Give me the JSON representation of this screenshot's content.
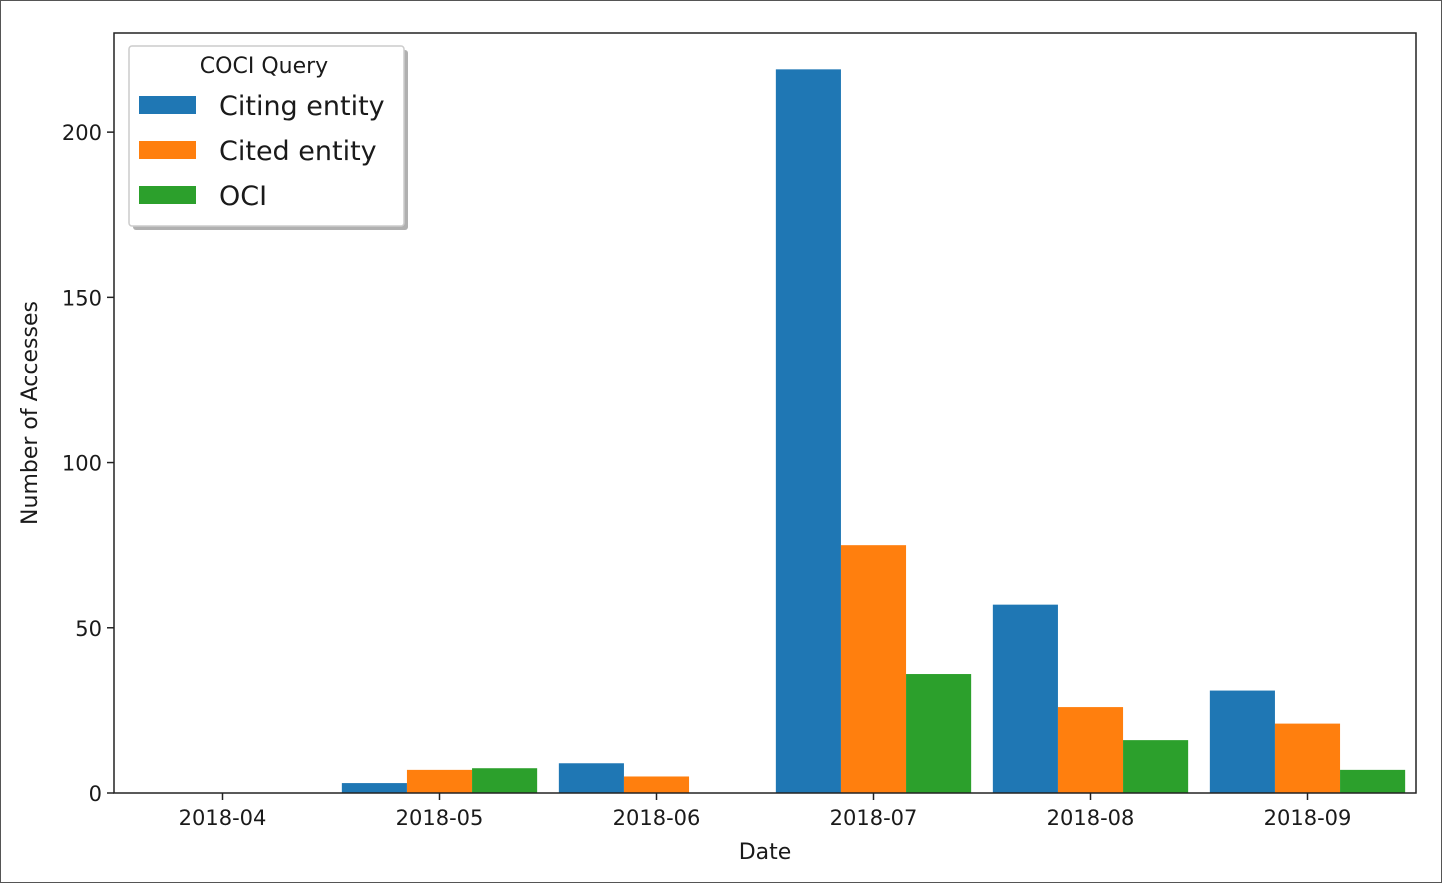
{
  "chart_data": {
    "type": "bar",
    "title": "",
    "xlabel": "Date",
    "ylabel": "Number of Accesses",
    "categories": [
      "2018-04",
      "2018-05",
      "2018-06",
      "2018-07",
      "2018-08",
      "2018-09"
    ],
    "yticks": [
      0,
      50,
      100,
      150,
      200
    ],
    "ylim": [
      0,
      230
    ],
    "grid": false,
    "legend": {
      "title": "COCI Query",
      "position": "top-left"
    },
    "series": [
      {
        "name": "Citing entity",
        "color": "#1f77b4",
        "values": [
          0,
          3,
          9,
          219,
          57,
          31
        ]
      },
      {
        "name": "Cited entity",
        "color": "#ff7f0e",
        "values": [
          0,
          7,
          5,
          75,
          26,
          21
        ]
      },
      {
        "name": "OCI",
        "color": "#2ca02c",
        "values": [
          0,
          7.5,
          0,
          36,
          16,
          7
        ]
      }
    ]
  }
}
